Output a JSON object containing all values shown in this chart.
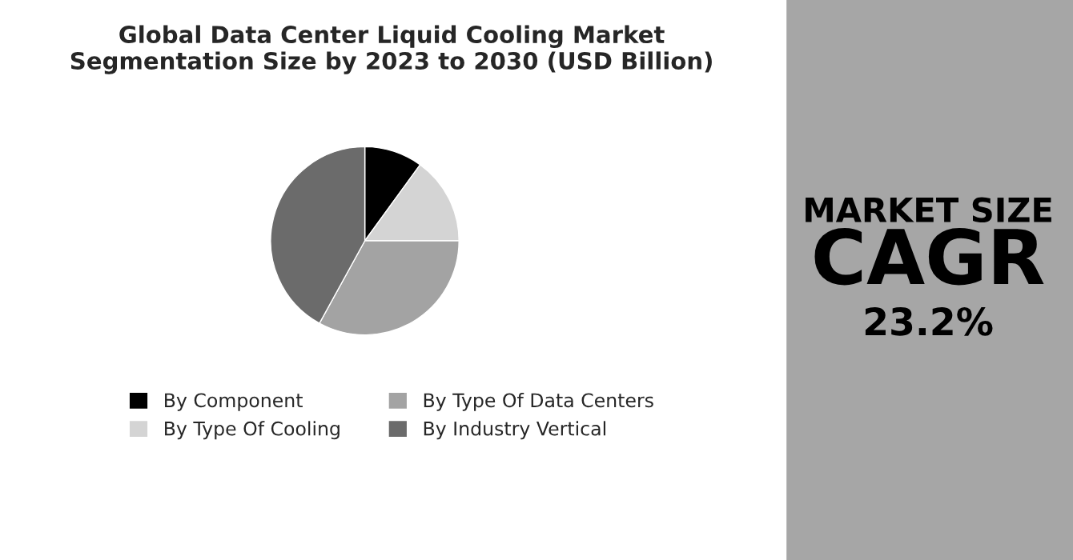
{
  "chart_data": {
    "type": "pie",
    "title": "Global Data Center Liquid Cooling Market\nSegmentation Size by 2023 to 2030 (USD Billion)",
    "categories": [
      "By Component",
      "By Type Of Cooling",
      "By Type Of Data Centers",
      "By Industry Vertical"
    ],
    "values": [
      10,
      15,
      33,
      42
    ],
    "colors": [
      "#000000",
      "#d4d4d4",
      "#a3a3a3",
      "#6b6b6b"
    ],
    "legend": "bottom",
    "annotations": [
      "MARKET SIZE",
      "CAGR",
      "23.2%"
    ]
  }
}
